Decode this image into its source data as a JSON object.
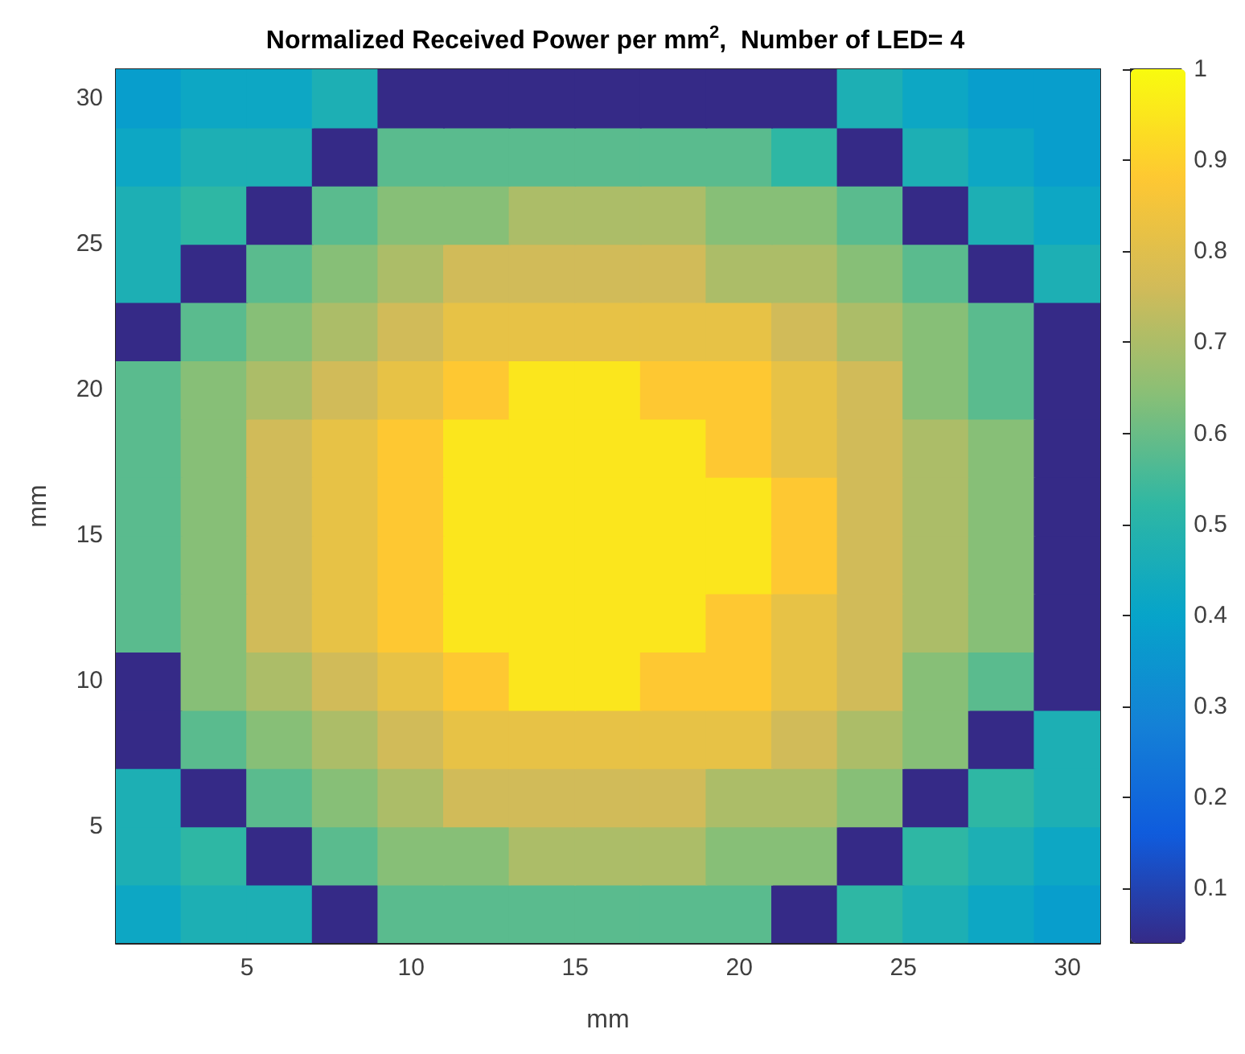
{
  "chart_data": {
    "type": "scatter",
    "title": "Normalized Received Power per mm$^{2}$,  Number of LED= 4",
    "xlabel": "mm",
    "ylabel": "mm",
    "marker": "square",
    "xlim": [
      1,
      31
    ],
    "ylim": [
      1,
      31
    ],
    "xticks": [
      5,
      10,
      15,
      20,
      25,
      30
    ],
    "yticks": [
      5,
      10,
      15,
      20,
      25,
      30
    ],
    "clim": [
      0.04,
      1
    ],
    "cticks": [
      0.1,
      0.2,
      0.3,
      0.4,
      0.5,
      0.6,
      0.7,
      0.8,
      0.9,
      1
    ],
    "x": [
      2,
      4,
      6,
      8,
      10,
      12,
      14,
      16,
      18,
      20,
      22,
      24,
      26,
      28,
      30,
      2,
      4,
      6,
      8,
      10,
      12,
      14,
      16,
      18,
      20,
      22,
      24,
      26,
      28,
      30,
      2,
      4,
      6,
      8,
      10,
      12,
      14,
      16,
      18,
      20,
      22,
      24,
      26,
      28,
      30,
      2,
      4,
      6,
      8,
      10,
      12,
      14,
      16,
      18,
      20,
      22,
      24,
      26,
      28,
      30,
      2,
      4,
      6,
      8,
      10,
      12,
      14,
      16,
      18,
      20,
      22,
      24,
      26,
      28,
      30,
      2,
      4,
      6,
      8,
      10,
      12,
      14,
      16,
      18,
      20,
      22,
      24,
      26,
      28,
      30,
      2,
      4,
      6,
      8,
      10,
      12,
      14,
      16,
      18,
      20,
      22,
      24,
      26,
      28,
      30,
      2,
      4,
      6,
      8,
      10,
      12,
      14,
      16,
      18,
      20,
      22,
      24,
      26,
      28,
      30,
      2,
      4,
      6,
      8,
      10,
      12,
      14,
      16,
      18,
      20,
      22,
      24,
      26,
      28,
      30,
      2,
      4,
      6,
      8,
      10,
      12,
      14,
      16,
      18,
      20,
      22,
      24,
      26,
      28,
      30,
      2,
      4,
      6,
      8,
      10,
      12,
      14,
      16,
      18,
      20,
      22,
      24,
      26,
      28,
      30,
      2,
      4,
      6,
      8,
      10,
      12,
      14,
      16,
      18,
      20,
      22,
      24,
      26,
      28,
      30,
      2,
      4,
      6,
      8,
      10,
      12,
      14,
      16,
      18,
      20,
      22,
      24,
      26,
      28,
      30,
      2,
      4,
      6,
      8,
      10,
      12,
      14,
      16,
      18,
      20,
      22,
      24,
      26,
      28,
      30,
      2,
      4,
      6,
      8,
      10,
      12,
      14,
      16,
      18,
      20,
      22,
      24,
      26,
      28,
      30
    ],
    "values": [
      2,
      2,
      2,
      2,
      2,
      2,
      2,
      2,
      2,
      2,
      2,
      2,
      2,
      2,
      2,
      4,
      4,
      4,
      4,
      4,
      4,
      4,
      4,
      4,
      4,
      4,
      4,
      4,
      4,
      4,
      6,
      6,
      6,
      6,
      6,
      6,
      6,
      6,
      6,
      6,
      6,
      6,
      6,
      6,
      6,
      8,
      8,
      8,
      8,
      8,
      8,
      8,
      8,
      8,
      8,
      8,
      8,
      8,
      8,
      8,
      10,
      10,
      10,
      10,
      10,
      10,
      10,
      10,
      10,
      10,
      10,
      10,
      10,
      10,
      10,
      12,
      12,
      12,
      12,
      12,
      12,
      12,
      12,
      12,
      12,
      12,
      12,
      12,
      12,
      12,
      14,
      14,
      14,
      14,
      14,
      14,
      14,
      14,
      14,
      14,
      14,
      14,
      14,
      14,
      14,
      16,
      16,
      16,
      16,
      16,
      16,
      16,
      16,
      16,
      16,
      16,
      16,
      16,
      16,
      16,
      18,
      18,
      18,
      18,
      18,
      18,
      18,
      18,
      18,
      18,
      18,
      18,
      18,
      18,
      18,
      20,
      20,
      20,
      20,
      20,
      20,
      20,
      20,
      20,
      20,
      20,
      20,
      20,
      20,
      20,
      22,
      22,
      22,
      22,
      22,
      22,
      22,
      22,
      22,
      22,
      22,
      22,
      22,
      22,
      22,
      24,
      24,
      24,
      24,
      24,
      24,
      24,
      24,
      24,
      24,
      24,
      24,
      24,
      24,
      24,
      26,
      26,
      26,
      26,
      26,
      26,
      26,
      26,
      26,
      26,
      26,
      26,
      26,
      26,
      26,
      28,
      28,
      28,
      28,
      28,
      28,
      28,
      28,
      28,
      28,
      28,
      28,
      28,
      28,
      28,
      30,
      30,
      30,
      30,
      30,
      30,
      30,
      30,
      30,
      30,
      30,
      30,
      30,
      30,
      30
    ],
    "cvalues": [
      0.42,
      0.47,
      0.47,
      0.04,
      0.58,
      0.58,
      0.58,
      0.58,
      0.58,
      0.58,
      0.04,
      0.52,
      0.47,
      0.42,
      0.38,
      0.47,
      0.52,
      0.04,
      0.58,
      0.64,
      0.64,
      0.7,
      0.7,
      0.7,
      0.64,
      0.64,
      0.04,
      0.52,
      0.47,
      0.42,
      0.47,
      0.04,
      0.58,
      0.64,
      0.7,
      0.76,
      0.76,
      0.76,
      0.76,
      0.7,
      0.7,
      0.64,
      0.04,
      0.52,
      0.47,
      0.04,
      0.58,
      0.64,
      0.7,
      0.76,
      0.82,
      0.82,
      0.82,
      0.82,
      0.82,
      0.76,
      0.7,
      0.64,
      0.04,
      0.47,
      0.04,
      0.64,
      0.7,
      0.76,
      0.82,
      0.88,
      0.95,
      0.95,
      0.88,
      0.88,
      0.82,
      0.76,
      0.64,
      0.58,
      0.04,
      0.58,
      0.64,
      0.76,
      0.82,
      0.88,
      0.95,
      0.95,
      0.95,
      0.95,
      0.88,
      0.82,
      0.76,
      0.7,
      0.64,
      0.04,
      0.58,
      0.64,
      0.76,
      0.82,
      0.88,
      0.95,
      0.95,
      0.95,
      0.95,
      0.95,
      0.88,
      0.76,
      0.7,
      0.64,
      0.04,
      0.58,
      0.64,
      0.76,
      0.82,
      0.88,
      0.95,
      0.95,
      0.95,
      0.95,
      0.95,
      0.88,
      0.76,
      0.7,
      0.64,
      0.04,
      0.58,
      0.64,
      0.76,
      0.82,
      0.88,
      0.95,
      0.95,
      0.95,
      0.95,
      0.88,
      0.82,
      0.76,
      0.7,
      0.64,
      0.04,
      0.58,
      0.64,
      0.7,
      0.76,
      0.82,
      0.88,
      0.95,
      0.95,
      0.88,
      0.88,
      0.82,
      0.76,
      0.64,
      0.58,
      0.04,
      0.04,
      0.58,
      0.64,
      0.7,
      0.76,
      0.82,
      0.82,
      0.82,
      0.82,
      0.82,
      0.76,
      0.7,
      0.64,
      0.58,
      0.04,
      0.47,
      0.04,
      0.58,
      0.64,
      0.7,
      0.76,
      0.76,
      0.76,
      0.76,
      0.7,
      0.7,
      0.64,
      0.58,
      0.04,
      0.47,
      0.47,
      0.52,
      0.04,
      0.58,
      0.64,
      0.64,
      0.7,
      0.7,
      0.7,
      0.64,
      0.64,
      0.58,
      0.04,
      0.47,
      0.42,
      0.42,
      0.47,
      0.47,
      0.04,
      0.58,
      0.58,
      0.58,
      0.58,
      0.58,
      0.58,
      0.52,
      0.04,
      0.47,
      0.42,
      0.38,
      0.38,
      0.42,
      0.42,
      0.47,
      0.04,
      0.04,
      0.04,
      0.04,
      0.04,
      0.04,
      0.04,
      0.47,
      0.42,
      0.38,
      0.38
    ]
  }
}
